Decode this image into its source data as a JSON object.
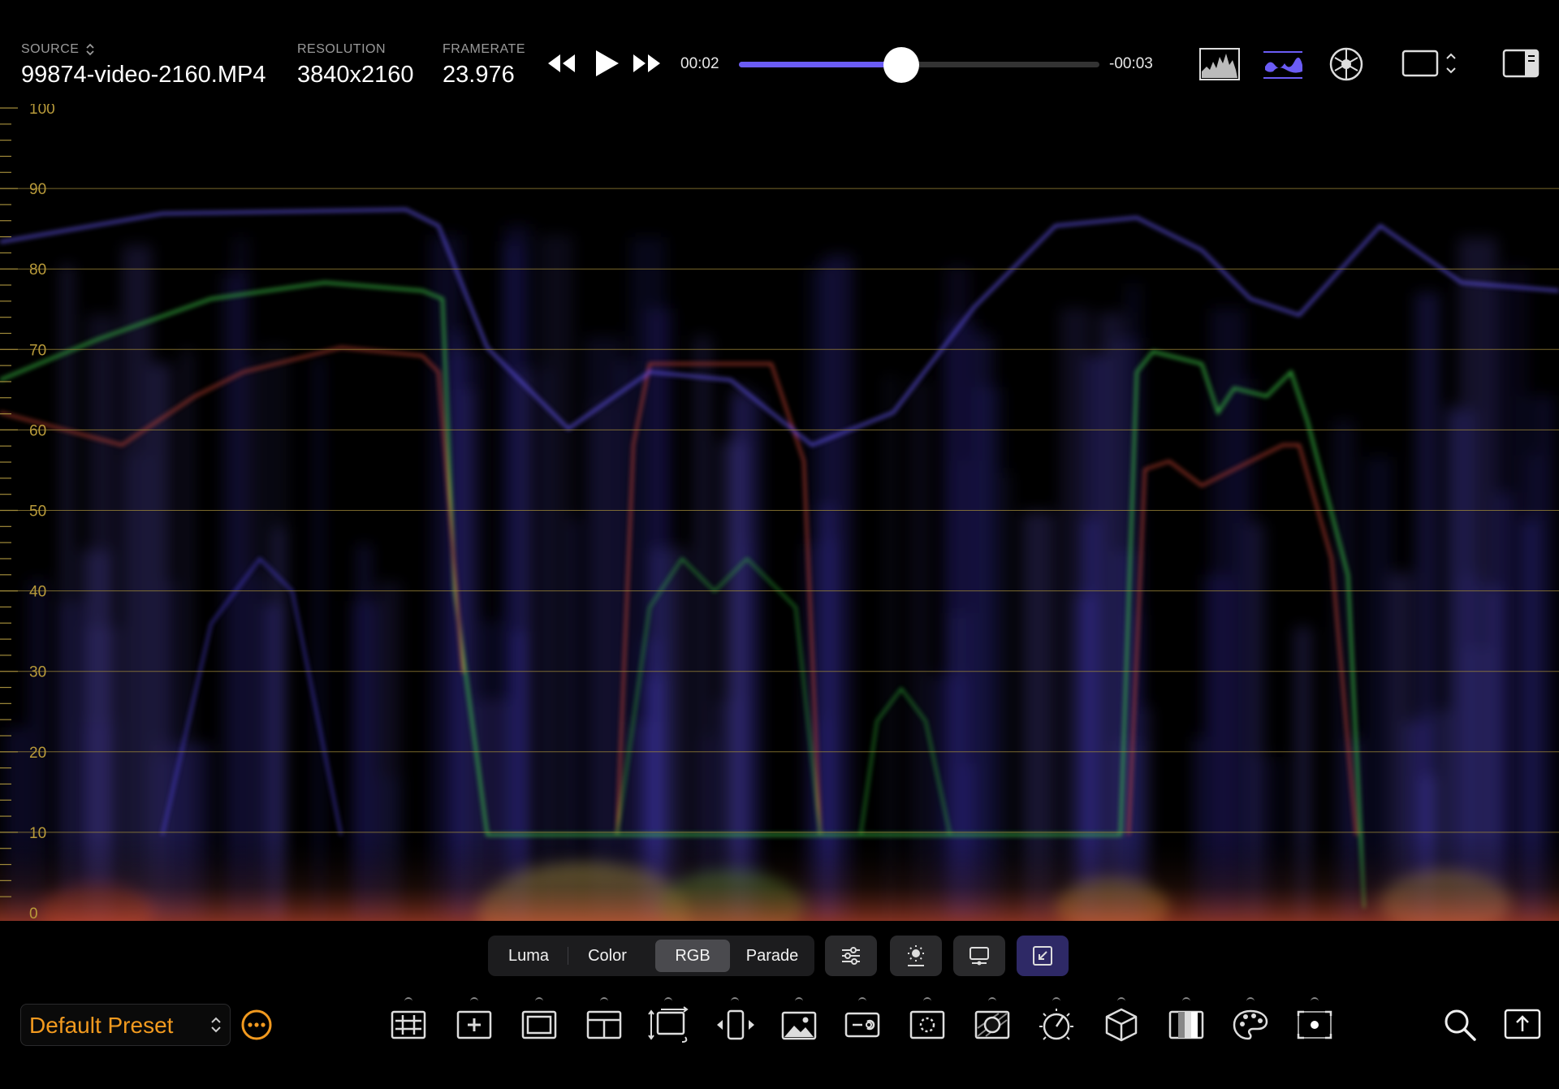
{
  "header": {
    "source_label": "SOURCE",
    "source_value": "99874-video-2160.MP4",
    "resolution_label": "RESOLUTION",
    "resolution_value": "3840x2160",
    "framerate_label": "FRAMERATE",
    "framerate_value": "23.976",
    "elapsed": "00:02",
    "remaining": "-00:03",
    "progress_fraction": 0.45
  },
  "scope": {
    "gridlines": [
      "100",
      "90",
      "80",
      "70",
      "60",
      "50",
      "40",
      "30",
      "20",
      "10",
      "0"
    ],
    "grid_color": "#a08a3a",
    "label_color": "#b89a3a"
  },
  "mode_tabs": [
    {
      "label": "Luma",
      "selected": false
    },
    {
      "label": "Color",
      "selected": false
    },
    {
      "label": "RGB",
      "selected": true
    },
    {
      "label": "Parade",
      "selected": false
    }
  ],
  "preset": {
    "label": "Default Preset",
    "color": "#f29a1f"
  },
  "colors": {
    "accent": "#6b5cf5",
    "active_button": "#2e2966",
    "preset_text": "#f29a1f"
  },
  "toolbar_icons": [
    "grid-icon",
    "center-marker-icon",
    "safe-area-icon",
    "layout-icon",
    "resize-icon",
    "frame-step-icon",
    "image-icon",
    "link-icon",
    "focus-icon",
    "mask-icon",
    "dial-icon",
    "cube-icon",
    "compare-icon",
    "palette-icon",
    "record-point-icon"
  ],
  "header_icons": [
    "histogram-icon",
    "waveform-icon",
    "vectorscope-icon",
    "display-icon",
    "sidebar-icon"
  ]
}
